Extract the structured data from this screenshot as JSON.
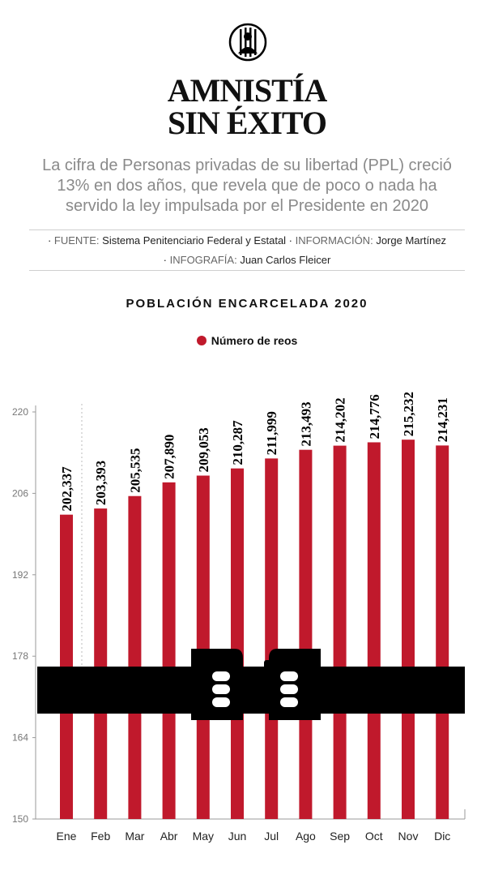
{
  "header": {
    "icon": "prisoner-behind-bars-icon",
    "title_line1": "AMNISTÍA",
    "title_line2": "SIN ÉXITO",
    "subtitle": "La cifra de Personas privadas de su libertad (PPL) creció 13% en dos años, que revela que de poco o nada ha servido la ley impulsada por el Presidente en 2020"
  },
  "credits": {
    "source_label": "FUENTE:",
    "source_value": "Sistema Penitenciario Federal y Estatal",
    "info_label": "INFORMACIÓN:",
    "info_value": "Jorge Martínez",
    "infographic_label": "INFOGRAFÍA:",
    "infographic_value": "Juan Carlos Fleicer"
  },
  "colors": {
    "bar": "#c0192c",
    "band": "#000000",
    "axis": "#9a9a9a"
  },
  "chart_data": {
    "type": "bar",
    "title": "POBLACIÓN ENCARCELADA 2020",
    "legend": [
      "Número de reos"
    ],
    "xlabel": "",
    "ylabel": "",
    "categories": [
      "Ene",
      "Feb",
      "Mar",
      "Abr",
      "May",
      "Jun",
      "Jul",
      "Ago",
      "Sep",
      "Oct",
      "Nov",
      "Dic"
    ],
    "values": [
      202337,
      203393,
      205535,
      207890,
      209053,
      210287,
      211999,
      213493,
      214202,
      214776,
      215232,
      214231
    ],
    "value_labels": [
      "202,337",
      "203,393",
      "205,535",
      "207,890",
      "209,053",
      "210,287",
      "211,999",
      "213,493",
      "214,202",
      "214,776",
      "215,232",
      "214,231"
    ],
    "yticks": [
      150,
      164,
      178,
      192,
      206,
      220
    ],
    "ytick_labels": [
      "150",
      "164",
      "178",
      "192",
      "206",
      "220"
    ],
    "ylim": [
      150000,
      220000
    ],
    "value_unit": "thousands on axis",
    "decoration": "broken-chains-fists-icon"
  }
}
